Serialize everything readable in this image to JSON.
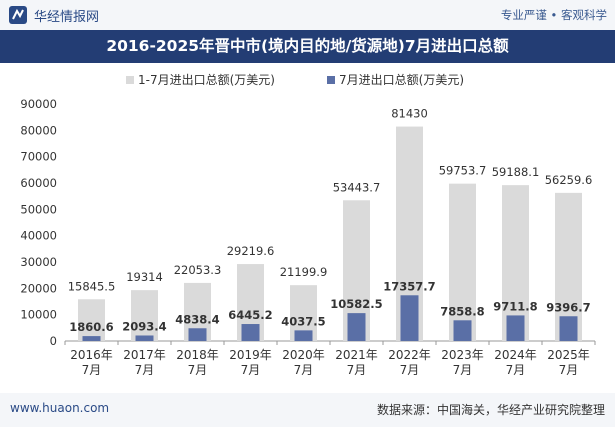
{
  "header": {
    "brand": "华经情报网",
    "tagline": "专业严谨 • 客观科学"
  },
  "footer": {
    "website": "www.huaon.com",
    "source": "数据来源：中国海关，华经产业研究院整理"
  },
  "colors": {
    "series1": "#dadada",
    "series2": "#5a6fa6",
    "title_bar": "#233d74",
    "topbar": "#f4f6f9"
  },
  "chart_data": {
    "type": "bar",
    "title": "2016-2025年晋中市(境内目的地/货源地)7月进出口总额",
    "categories": [
      "2016年\n7月",
      "2017年\n7月",
      "2018年\n7月",
      "2019年\n7月",
      "2020年\n7月",
      "2021年\n7月",
      "2022年\n7月",
      "2023年\n7月",
      "2024年\n7月",
      "2025年\n7月"
    ],
    "series": [
      {
        "name": "1-7月进出口总额(万美元)",
        "values": [
          15845.5,
          19314,
          22053.3,
          29219.6,
          21199.9,
          53443.7,
          81430,
          59753.7,
          59188.1,
          56259.6
        ],
        "labels": [
          "15845.5",
          "19314",
          "22053.3",
          "29219.6",
          "21199.9",
          "53443.7",
          "81430",
          "59753.7",
          "59188.1",
          "56259.6"
        ]
      },
      {
        "name": "7月进出口总额(万美元)",
        "values": [
          1860.6,
          2093.4,
          4838.4,
          6445.2,
          4037.5,
          10582.5,
          17357.7,
          7858.8,
          9711.8,
          9396.7
        ],
        "labels": [
          "1860.6",
          "2093.4",
          "4838.4",
          "6445.2",
          "4037.5",
          "10582.5",
          "17357.7",
          "7858.8",
          "9711.8",
          "9396.7"
        ]
      }
    ],
    "ylim": [
      0,
      90000
    ],
    "yticks": [
      "0",
      "10000",
      "20000",
      "30000",
      "40000",
      "50000",
      "60000",
      "70000",
      "80000",
      "90000"
    ],
    "ytick_values": [
      0,
      10000,
      20000,
      30000,
      40000,
      50000,
      60000,
      70000,
      80000,
      90000
    ],
    "grid": false,
    "legend_position": "top-center"
  }
}
